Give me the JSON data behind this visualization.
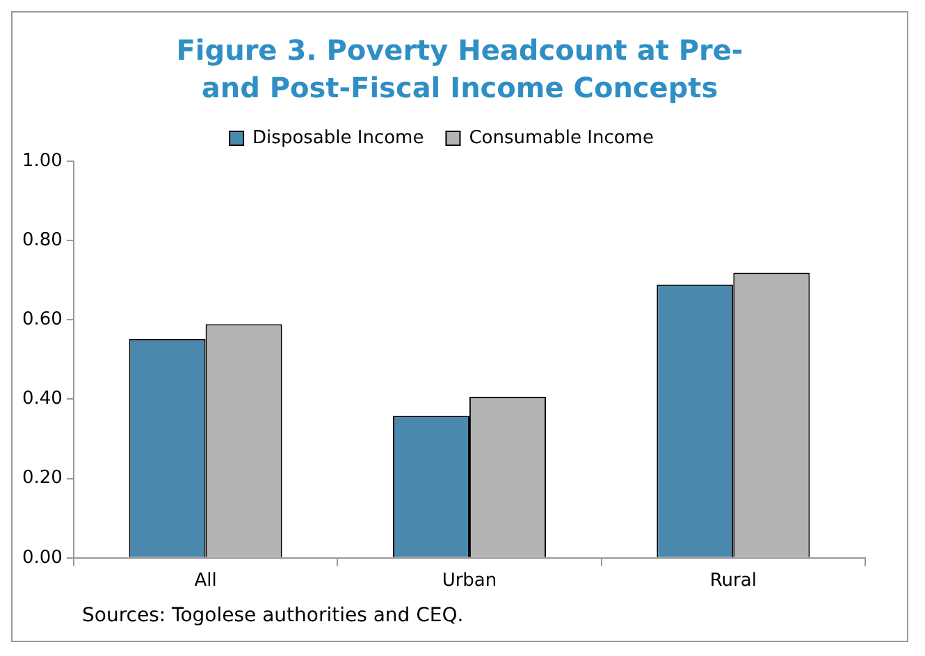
{
  "chart_data": {
    "type": "bar",
    "title": "Figure 3. Poverty Headcount at Pre- and Post-Fiscal Income Concepts",
    "categories": [
      "All",
      "Urban",
      "Rural"
    ],
    "series": [
      {
        "name": "Disposable Income",
        "color": "#4a89ad",
        "values": [
          0.552,
          0.358,
          0.689
        ]
      },
      {
        "name": "Consumable Income",
        "color": "#b3b3b3",
        "values": [
          0.589,
          0.406,
          0.719
        ]
      }
    ],
    "ylim": [
      0,
      1
    ],
    "yticks": [
      {
        "value": 0,
        "label": "0.00"
      },
      {
        "value": 0.2,
        "label": "0.20"
      },
      {
        "value": 0.4,
        "label": "0.40"
      },
      {
        "value": 0.6,
        "label": "0.60"
      },
      {
        "value": 0.8,
        "label": "0.80"
      },
      {
        "value": 1,
        "label": "1.00"
      }
    ],
    "grid": false,
    "legend": "top",
    "annotations": [
      "Sources: Togolese authorities and CEQ."
    ]
  }
}
